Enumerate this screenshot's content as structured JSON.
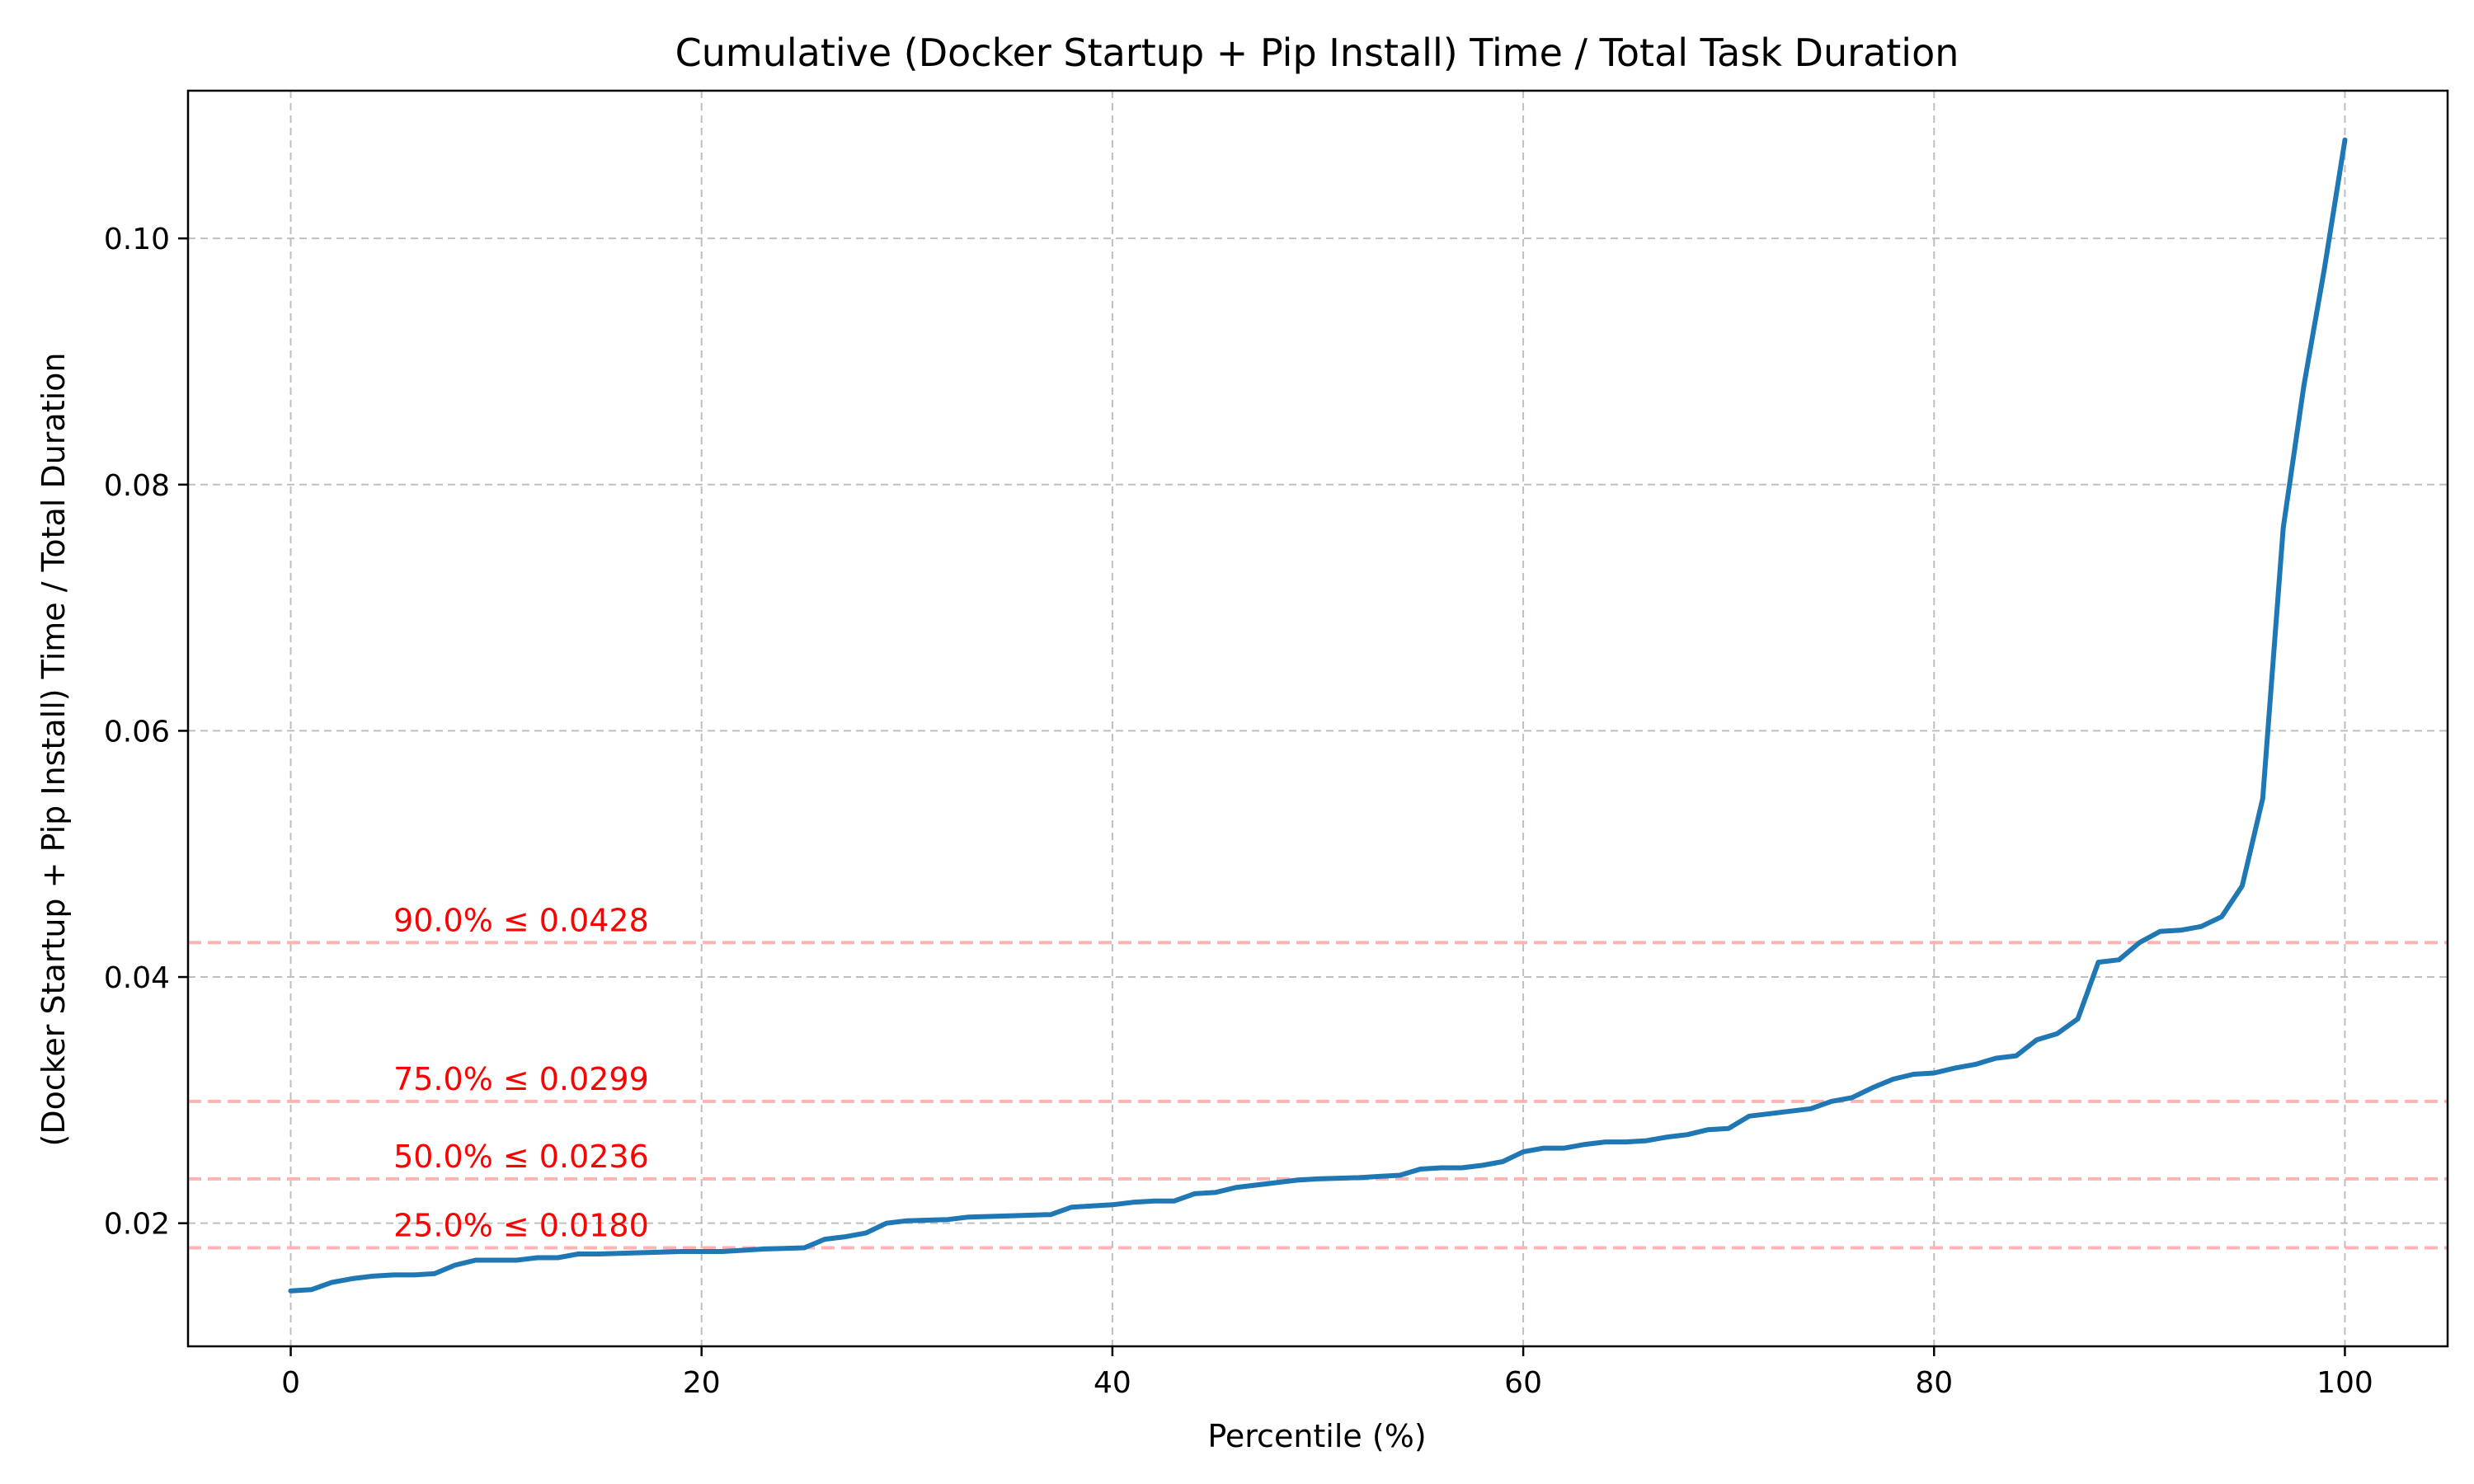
{
  "chart_data": {
    "type": "line",
    "title": "Cumulative (Docker Startup + Pip Install) Time / Total Task Duration",
    "xlabel": "Percentile (%)",
    "ylabel": "(Docker Startup + Pip Install) Time / Total Duration",
    "xlim": [
      -5,
      105
    ],
    "ylim": [
      0.01,
      0.112
    ],
    "x_ticks": [
      0,
      20,
      40,
      60,
      80,
      100
    ],
    "x_tick_labels": [
      "0",
      "20",
      "40",
      "60",
      "80",
      "100"
    ],
    "y_ticks": [
      0.02,
      0.04,
      0.06,
      0.08,
      0.1
    ],
    "y_tick_labels": [
      "0.02",
      "0.04",
      "0.06",
      "0.08",
      "0.10"
    ],
    "grid": true,
    "series": [
      {
        "color": "#1f77b4",
        "points": [
          [
            0,
            0.0145
          ],
          [
            1,
            0.0146
          ],
          [
            2,
            0.0152
          ],
          [
            3,
            0.0155
          ],
          [
            4,
            0.0157
          ],
          [
            5,
            0.0158
          ],
          [
            6,
            0.0158
          ],
          [
            7,
            0.0159
          ],
          [
            8,
            0.0166
          ],
          [
            9,
            0.017
          ],
          [
            10,
            0.017
          ],
          [
            11,
            0.017
          ],
          [
            12,
            0.0172
          ],
          [
            13,
            0.0172
          ],
          [
            14,
            0.0175
          ],
          [
            15,
            0.0175
          ],
          [
            17,
            0.0176
          ],
          [
            19,
            0.0177
          ],
          [
            21,
            0.0177
          ],
          [
            23,
            0.0179
          ],
          [
            25,
            0.018
          ],
          [
            26,
            0.0187
          ],
          [
            27,
            0.0189
          ],
          [
            28,
            0.0192
          ],
          [
            29,
            0.02
          ],
          [
            30,
            0.0202
          ],
          [
            32,
            0.0203
          ],
          [
            33,
            0.0205
          ],
          [
            35,
            0.0206
          ],
          [
            37,
            0.0207
          ],
          [
            38,
            0.0213
          ],
          [
            40,
            0.0215
          ],
          [
            41,
            0.0217
          ],
          [
            42,
            0.0218
          ],
          [
            43,
            0.0218
          ],
          [
            44,
            0.0224
          ],
          [
            45,
            0.0225
          ],
          [
            46,
            0.0229
          ],
          [
            47,
            0.0231
          ],
          [
            48,
            0.0233
          ],
          [
            49,
            0.0235
          ],
          [
            50,
            0.0236
          ],
          [
            52,
            0.0237
          ],
          [
            53,
            0.0238
          ],
          [
            54,
            0.0239
          ],
          [
            55,
            0.0244
          ],
          [
            56,
            0.0245
          ],
          [
            57,
            0.0245
          ],
          [
            58,
            0.0247
          ],
          [
            59,
            0.025
          ],
          [
            60,
            0.0258
          ],
          [
            61,
            0.0261
          ],
          [
            62,
            0.0261
          ],
          [
            63,
            0.0264
          ],
          [
            64,
            0.0266
          ],
          [
            65,
            0.0266
          ],
          [
            66,
            0.0267
          ],
          [
            67,
            0.027
          ],
          [
            68,
            0.0272
          ],
          [
            69,
            0.0276
          ],
          [
            70,
            0.0277
          ],
          [
            71,
            0.0287
          ],
          [
            72,
            0.0289
          ],
          [
            73,
            0.0291
          ],
          [
            74,
            0.0293
          ],
          [
            75,
            0.0299
          ],
          [
            76,
            0.0302
          ],
          [
            77,
            0.031
          ],
          [
            78,
            0.0317
          ],
          [
            79,
            0.0321
          ],
          [
            80,
            0.0322
          ],
          [
            81,
            0.0326
          ],
          [
            82,
            0.0329
          ],
          [
            83,
            0.0334
          ],
          [
            84,
            0.0336
          ],
          [
            85,
            0.0349
          ],
          [
            86,
            0.0354
          ],
          [
            87,
            0.0366
          ],
          [
            88,
            0.0412
          ],
          [
            89,
            0.0414
          ],
          [
            90,
            0.0428
          ],
          [
            91,
            0.0437
          ],
          [
            92,
            0.0438
          ],
          [
            93,
            0.0441
          ],
          [
            94,
            0.0449
          ],
          [
            95,
            0.0474
          ],
          [
            96,
            0.0545
          ],
          [
            97,
            0.0765
          ],
          [
            98,
            0.088
          ],
          [
            99,
            0.0975
          ],
          [
            100,
            0.108
          ]
        ]
      }
    ],
    "reference_lines": [
      {
        "y": 0.018,
        "label": "25.0% ≤ 0.0180"
      },
      {
        "y": 0.0236,
        "label": "50.0% ≤ 0.0236"
      },
      {
        "y": 0.0299,
        "label": "75.0% ≤ 0.0299"
      },
      {
        "y": 0.0428,
        "label": "90.0% ≤ 0.0428"
      }
    ],
    "reference_label_x": 5,
    "reference_color": "#ff0000",
    "reference_line_color": "#ffb3b3",
    "grid_color": "#b0b0b0"
  }
}
